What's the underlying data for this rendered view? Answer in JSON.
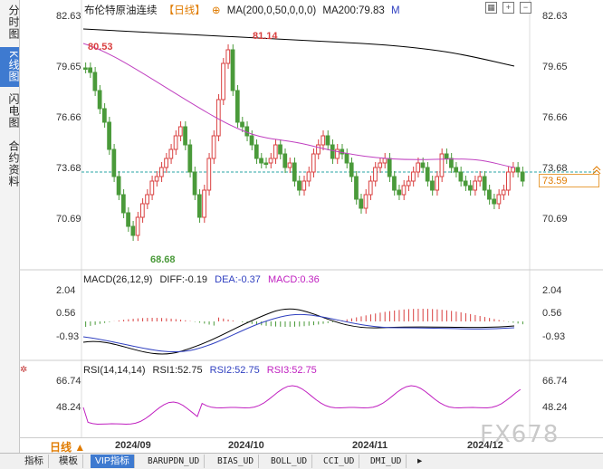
{
  "sidebar": {
    "tabs": [
      {
        "label": "分时图",
        "active": false
      },
      {
        "label": "K线图",
        "active": true
      },
      {
        "label": "闪电图",
        "active": false
      },
      {
        "label": "合约资料",
        "active": false
      }
    ]
  },
  "header": {
    "instrument": "布伦特原油连续",
    "period_tag": "【日线】",
    "ma_label": "MA(200,0,50,0,0,0)",
    "ma_value": "MA200:79.83",
    "ma_extra": "M"
  },
  "price_axis": {
    "ticks": [
      "82.63",
      "79.65",
      "76.66",
      "73.68",
      "70.69"
    ]
  },
  "annotations": {
    "high1": "80.53",
    "high2": "81.14",
    "low": "68.68"
  },
  "current_price": "73.59",
  "macd": {
    "title": "MACD(26,12,9)",
    "diff": "DIFF:-0.19",
    "dea": "DEA:-0.37",
    "macd": "MACD:0.36",
    "ticks": [
      "2.04",
      "0.56",
      "-0.93"
    ]
  },
  "rsi": {
    "title": "RSI(14,14,14)",
    "rsi1": "RSI1:52.75",
    "rsi2": "RSI2:52.75",
    "rsi3": "RSI3:52.75",
    "ticks": [
      "66.74",
      "48.24"
    ]
  },
  "xaxis": {
    "labels": [
      "2024/09",
      "2024/10",
      "2024/11",
      "2024/12"
    ]
  },
  "period_selector": "日线 ▲",
  "bottom_tabs": [
    {
      "label": "指标",
      "active": false,
      "mono": false
    },
    {
      "label": "模板",
      "active": false,
      "mono": false
    },
    {
      "label": "VIP指标",
      "active": true,
      "mono": false
    },
    {
      "label": "BARUPDN_UD",
      "active": false,
      "mono": true
    },
    {
      "label": "BIAS_UD",
      "active": false,
      "mono": true
    },
    {
      "label": "BOLL_UD",
      "active": false,
      "mono": true
    },
    {
      "label": "CCI_UD",
      "active": false,
      "mono": true
    },
    {
      "label": "DMI_UD",
      "active": false,
      "mono": true
    }
  ],
  "watermark": "FX678",
  "colors": {
    "up": "#d94040",
    "down": "#4a9a3a",
    "ma": "#c040c0",
    "diff": "#000000",
    "dea": "#3040c0",
    "rsi": "#c020c0",
    "accent": "#3e7ad0"
  }
}
